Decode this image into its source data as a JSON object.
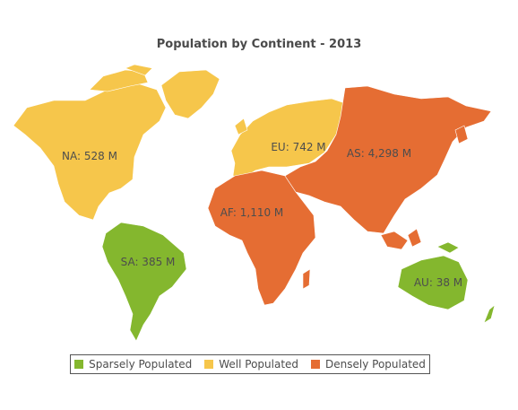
{
  "title": "Population by Continent - 2013",
  "colors": {
    "sparse": "#84b72e",
    "well": "#f6c64b",
    "dense": "#e56d33"
  },
  "regions": [
    {
      "id": "na",
      "label": "NA: 528 M",
      "category": "well"
    },
    {
      "id": "sa",
      "label": "SA: 385 M",
      "category": "sparse"
    },
    {
      "id": "eu",
      "label": "EU: 742 M",
      "category": "well"
    },
    {
      "id": "af",
      "label": "AF: 1,110 M",
      "category": "dense"
    },
    {
      "id": "as",
      "label": "AS: 4,298 M",
      "category": "dense"
    },
    {
      "id": "au",
      "label": "AU: 38 M",
      "category": "sparse"
    }
  ],
  "legend": [
    {
      "label": "Sparsely Populated",
      "category": "sparse"
    },
    {
      "label": "Well Populated",
      "category": "well"
    },
    {
      "label": "Densely Populated",
      "category": "dense"
    }
  ]
}
